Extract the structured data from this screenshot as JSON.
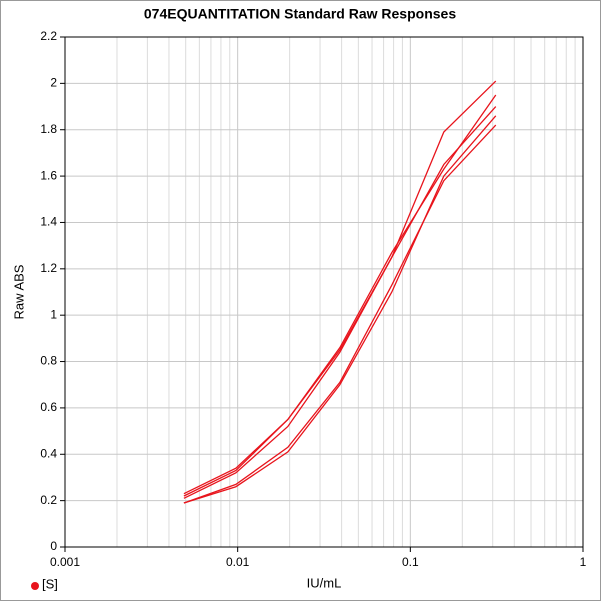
{
  "chart_data": {
    "type": "line",
    "title": "074EQUANTITATION Standard Raw Responses",
    "x_label": "IU/mL",
    "y_label": "Raw ABS",
    "x": [
      0.0048828,
      0.0097656,
      0.0195313,
      0.0390625,
      0.078125,
      0.15625,
      0.3125
    ],
    "series": [
      {
        "color": "#e8141c",
        "values": [
          0.22,
          0.33,
          0.55,
          0.85,
          1.25,
          1.79,
          2.01
        ]
      },
      {
        "color": "#e8141c",
        "values": [
          0.23,
          0.34,
          0.55,
          0.86,
          1.27,
          1.63,
          1.95
        ]
      },
      {
        "color": "#e8141c",
        "values": [
          0.21,
          0.32,
          0.52,
          0.84,
          1.25,
          1.65,
          1.9
        ]
      },
      {
        "color": "#e8141c",
        "values": [
          0.19,
          0.26,
          0.41,
          0.7,
          1.1,
          1.6,
          1.86
        ]
      },
      {
        "color": "#e8141c",
        "values": [
          0.19,
          0.27,
          0.43,
          0.71,
          1.13,
          1.58,
          1.82
        ]
      }
    ],
    "legend_label": "[S]",
    "legend_color": "#e8141c",
    "xscale": "log",
    "xlim": [
      0.001,
      1
    ],
    "xticks": [
      0.001,
      0.01,
      0.1,
      1
    ],
    "ylim": [
      0,
      2.2
    ],
    "yticks": [
      0,
      0.2,
      0.4,
      0.6,
      0.8,
      1,
      1.2,
      1.4,
      1.6,
      1.8,
      2,
      2.2
    ],
    "grid": true
  }
}
